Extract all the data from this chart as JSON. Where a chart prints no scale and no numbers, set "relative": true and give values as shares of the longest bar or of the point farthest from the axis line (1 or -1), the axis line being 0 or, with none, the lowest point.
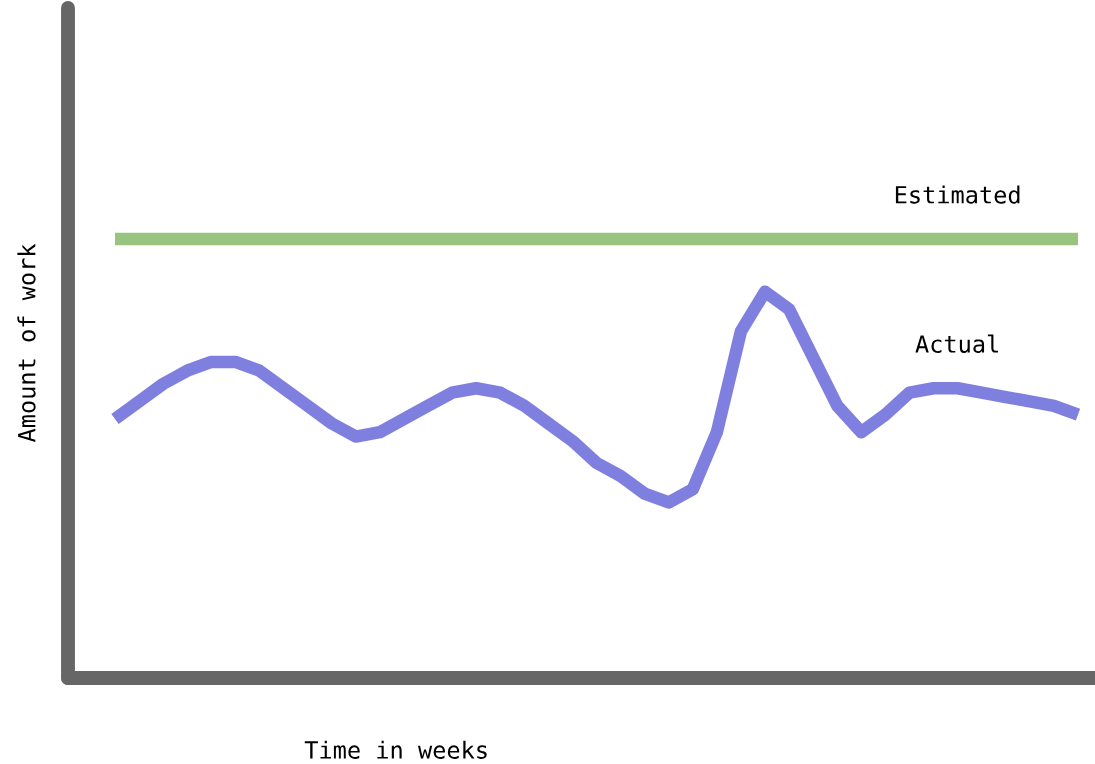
{
  "chart_data": {
    "type": "line",
    "relative": true,
    "xlabel": "Time in weeks",
    "ylabel": "Amount of work",
    "legend": false,
    "grid": false,
    "marker": "none",
    "line_style": "solid",
    "tick_labels": false,
    "categories": [
      null,
      null,
      null,
      null,
      null,
      null,
      null,
      null,
      null,
      null,
      null,
      null,
      null,
      null,
      null,
      null,
      null,
      null,
      null,
      null,
      null,
      null,
      null,
      null,
      null,
      null,
      null,
      null,
      null,
      null,
      null,
      null,
      null,
      null,
      null,
      null,
      null,
      null,
      null,
      null,
      null
    ],
    "series": [
      {
        "name": "Estimated",
        "color": "#98c47f",
        "values": [
          1,
          1,
          1,
          1,
          1,
          1,
          1,
          1,
          1,
          1,
          1,
          1,
          1,
          1,
          1,
          1,
          1,
          1,
          1,
          1,
          1,
          1,
          1,
          1,
          1,
          1,
          1,
          1,
          1,
          1,
          1,
          1,
          1,
          1,
          1,
          1,
          1,
          1,
          1,
          1,
          1
        ]
      },
      {
        "name": "Actual",
        "color": "#7f7fdf",
        "values": [
          0.59,
          0.63,
          0.67,
          0.7,
          0.72,
          0.72,
          0.7,
          0.66,
          0.62,
          0.58,
          0.55,
          0.56,
          0.59,
          0.62,
          0.65,
          0.66,
          0.65,
          0.62,
          0.58,
          0.54,
          0.49,
          0.46,
          0.42,
          0.4,
          0.43,
          0.56,
          0.79,
          0.88,
          0.84,
          0.73,
          0.62,
          0.56,
          0.6,
          0.65,
          0.66,
          0.66,
          0.65,
          0.64,
          0.63,
          0.62,
          0.6
        ]
      }
    ]
  }
}
